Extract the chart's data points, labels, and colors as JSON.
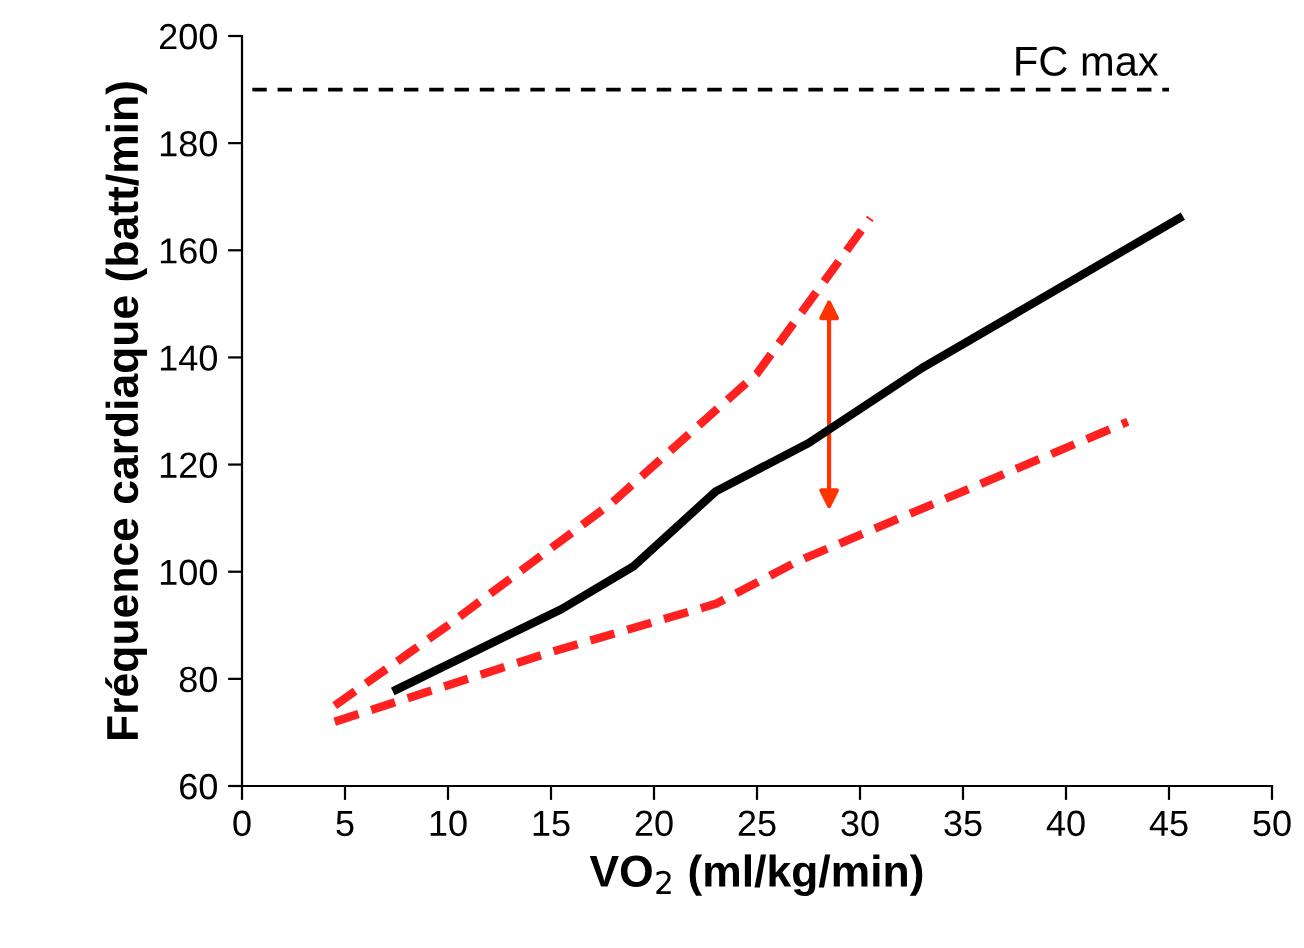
{
  "chart_data": {
    "type": "line",
    "xlabel": "VO$_{2}$ (ml/kg/min)",
    "ylabel": "Fréquence cardiaque (batt/min)",
    "xlim": [
      0,
      50
    ],
    "xticks": [
      0,
      5,
      10,
      15,
      20,
      25,
      30,
      35,
      40,
      45,
      50
    ],
    "ylim": [
      60,
      200
    ],
    "yticks": [
      60,
      80,
      100,
      120,
      140,
      160,
      180,
      200
    ],
    "grid": false,
    "legend": false,
    "marker": "none",
    "series": [
      {
        "color": "#000000",
        "line_style": "solid",
        "x": [
          7.5,
          15.5,
          19,
          23,
          27.5,
          33,
          45.5
        ],
        "values": [
          78,
          93,
          101,
          115,
          124,
          138,
          166
        ]
      },
      {
        "color": "#ff2020",
        "line_style": "dashed",
        "x": [
          4.5,
          10,
          18,
          25,
          30.5
        ],
        "values": [
          75,
          90,
          113,
          137,
          166
        ]
      },
      {
        "color": "#ff2020",
        "line_style": "dashed",
        "x": [
          4.5,
          15,
          23,
          27,
          43
        ],
        "values": [
          72,
          85,
          94,
          102,
          128
        ]
      }
    ],
    "ref_lines": [
      {
        "axis": "y",
        "value": 190,
        "label": "FC max",
        "color": "#000000",
        "line_style": "dashed"
      }
    ]
  }
}
